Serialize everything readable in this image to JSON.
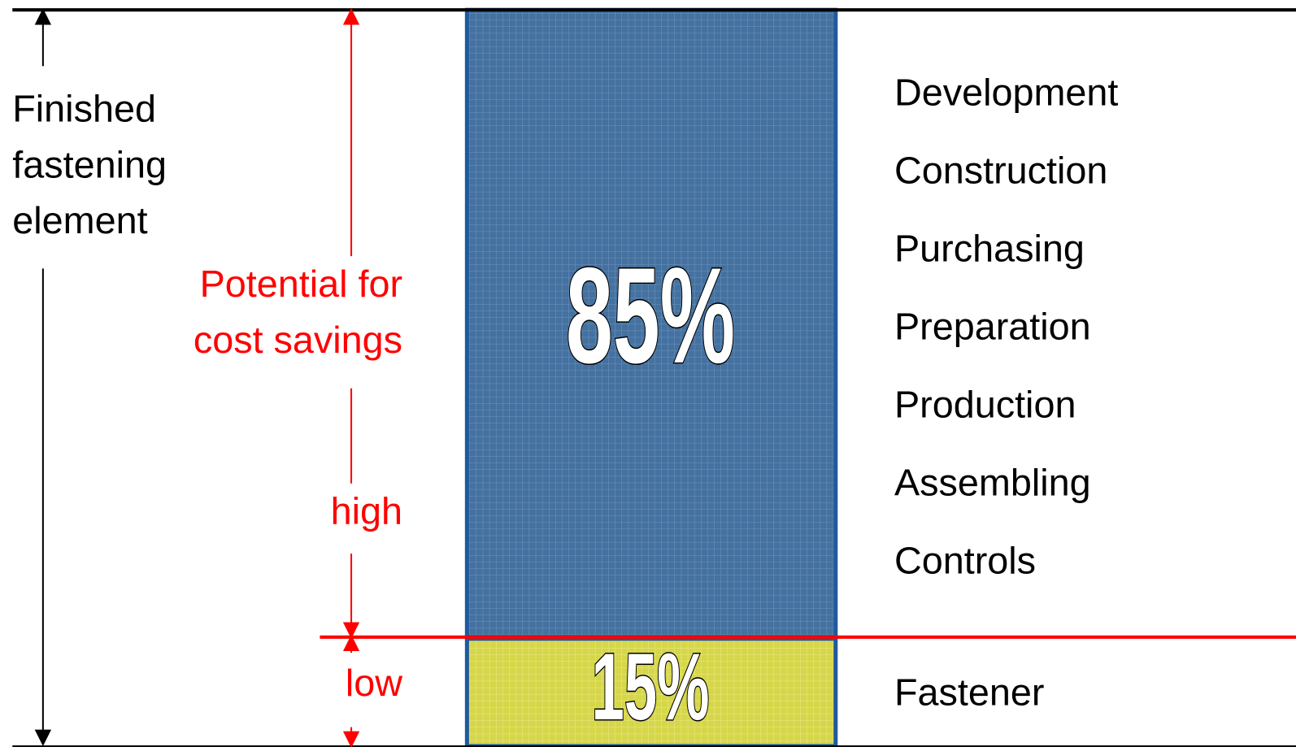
{
  "left_label": [
    "Finished",
    "fastening",
    "element"
  ],
  "potential_label": [
    "Potential for",
    "cost savings"
  ],
  "levels": {
    "high": "high",
    "low": "low"
  },
  "segments": [
    {
      "percent": "85%",
      "activities": [
        "Development",
        "Construction",
        "Purchasing",
        "Preparation",
        "Production",
        "Assembling",
        "Controls"
      ]
    },
    {
      "percent": "15%",
      "activities": [
        "Fastener"
      ]
    }
  ]
}
